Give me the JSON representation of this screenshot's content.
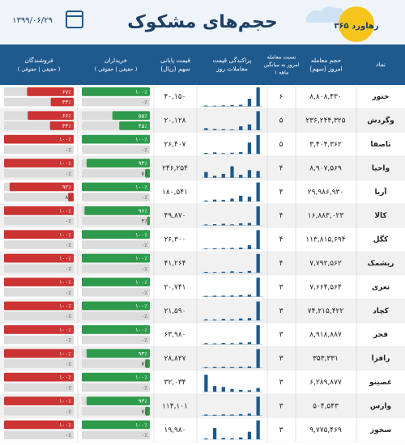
{
  "header": {
    "title": "حجم‌های مشکوک",
    "date": "۱۳۹۹/۰۶/۲۹",
    "logo": "رهاورد ۳۶۵"
  },
  "table": {
    "columns": {
      "symbol": [
        "نماد"
      ],
      "volume": [
        "حجم معامله",
        "امروز (سهم)"
      ],
      "ratio": [
        "نسبت معامله",
        "امروز به میانگین",
        "۱ ماهه"
      ],
      "dispersion": [
        "پراکندگی قیمت",
        "معاملات روز"
      ],
      "price": [
        "قیمت پایانی",
        "سهم (ریال)"
      ],
      "buyers": [
        "خریداران",
        "( حقیقی | حقوقی )"
      ],
      "sellers": [
        "فروشندگان",
        "( حقیقی | حقوقی )"
      ]
    },
    "rows": [
      {
        "symbol": "ختور",
        "volume": "۸,۸۰۸,۴۳۰",
        "ratio": "۶",
        "price": "۴۰,۱۵۰",
        "dispersion": [
          4,
          3,
          5,
          6,
          8,
          40,
          100
        ],
        "buyers": [
          {
            "value": 100,
            "label": "۱۰۰٪"
          },
          {
            "value": 0,
            "label": "۰٪"
          }
        ],
        "sellers": [
          {
            "value": 67,
            "label": "۶۷٪"
          },
          {
            "value": 33,
            "label": "۳۳٪"
          }
        ]
      },
      {
        "symbol": "وگردش",
        "volume": "۲۳۶,۲۴۴,۳۲۵",
        "ratio": "۵",
        "price": "۲۰,۱۲۸",
        "dispersion": [
          10,
          6,
          5,
          4,
          20,
          30,
          100
        ],
        "buyers": [
          {
            "value": 55,
            "label": "۵۵٪"
          },
          {
            "value": 45,
            "label": "۴۵٪"
          }
        ],
        "sellers": [
          {
            "value": 66,
            "label": "۶۶٪"
          },
          {
            "value": 34,
            "label": "۳۴٪"
          }
        ]
      },
      {
        "symbol": "ثاصفا",
        "volume": "۳,۴۰۴,۳۶۲",
        "ratio": "۵",
        "price": "۲۶,۴۰۷",
        "dispersion": [
          5,
          8,
          4,
          6,
          10,
          60,
          100
        ],
        "buyers": [
          {
            "value": 100,
            "label": "۱۰۰٪"
          },
          {
            "value": 0,
            "label": "۰٪"
          }
        ],
        "sellers": [
          {
            "value": 100,
            "label": "۱۰۰٪"
          },
          {
            "value": 0,
            "label": "۰٪"
          }
        ]
      },
      {
        "symbol": "واحیا",
        "volume": "۸,۹۰۷,۵۶۹",
        "ratio": "۴",
        "price": "۲۴۶,۲۵۴",
        "dispersion": [
          30,
          10,
          20,
          60,
          15,
          40,
          35
        ],
        "buyers": [
          {
            "value": 93,
            "label": "۹۳٪"
          },
          {
            "value": 7,
            "label": "۷٪"
          }
        ],
        "sellers": [
          {
            "value": 100,
            "label": "۱۰۰٪"
          },
          {
            "value": 0,
            "label": "۰٪"
          }
        ]
      },
      {
        "symbol": "آریا",
        "volume": "۲۹,۹۸۶,۹۳۰",
        "ratio": "۴",
        "price": "۱۸۰,۵۴۱",
        "dispersion": [
          5,
          10,
          8,
          15,
          30,
          25,
          100
        ],
        "buyers": [
          {
            "value": 100,
            "label": "۱۰۰٪"
          },
          {
            "value": 0,
            "label": "۰٪"
          }
        ],
        "sellers": [
          {
            "value": 92,
            "label": "۹۲٪"
          },
          {
            "value": 8,
            "label": "۸٪"
          }
        ]
      },
      {
        "symbol": "کالا",
        "volume": "۱۶,۸۸۳,۰۲۳",
        "ratio": "۴",
        "price": "۴۹,۸۷۰",
        "dispersion": [
          4,
          6,
          8,
          5,
          10,
          12,
          100
        ],
        "buyers": [
          {
            "value": 96,
            "label": "۹۶٪"
          },
          {
            "value": 4,
            "label": "۴٪"
          }
        ],
        "sellers": [
          {
            "value": 100,
            "label": "۱۰۰٪"
          },
          {
            "value": 0,
            "label": "۰٪"
          }
        ]
      },
      {
        "symbol": "کگل",
        "volume": "۱۱۳,۸۱۵,۶۹۴",
        "ratio": "۴",
        "price": "۲۶,۳۰۰",
        "dispersion": [
          3,
          4,
          5,
          6,
          8,
          20,
          100
        ],
        "buyers": [
          {
            "value": 100,
            "label": "۱۰۰٪"
          },
          {
            "value": 0,
            "label": "۰٪"
          }
        ],
        "sellers": [
          {
            "value": 100,
            "label": "۱۰۰٪"
          },
          {
            "value": 0,
            "label": "۰٪"
          }
        ]
      },
      {
        "symbol": "ریشمک",
        "volume": "۷,۷۹۲,۵۶۲",
        "ratio": "۴",
        "price": "۴۱,۲۶۴",
        "dispersion": [
          5,
          4,
          6,
          8,
          5,
          10,
          100
        ],
        "buyers": [
          {
            "value": 100,
            "label": "۱۰۰٪"
          },
          {
            "value": 0,
            "label": "۰٪"
          }
        ],
        "sellers": [
          {
            "value": 100,
            "label": "۱۰۰٪"
          },
          {
            "value": 0,
            "label": "۰٪"
          }
        ]
      },
      {
        "symbol": "ثغری",
        "volume": "۷,۶۶۴,۵۶۴",
        "ratio": "۳",
        "price": "۲۰,۷۴۱",
        "dispersion": [
          4,
          5,
          5,
          6,
          8,
          10,
          100
        ],
        "buyers": [
          {
            "value": 100,
            "label": "۱۰۰٪"
          },
          {
            "value": 0,
            "label": "۰٪"
          }
        ],
        "sellers": [
          {
            "value": 100,
            "label": "۱۰۰٪"
          },
          {
            "value": 0,
            "label": "۰٪"
          }
        ]
      },
      {
        "symbol": "کچاد",
        "volume": "۷۴,۲۱۵,۴۲۲",
        "ratio": "۳",
        "price": "۲۱,۵۹۰",
        "dispersion": [
          6,
          5,
          8,
          6,
          10,
          12,
          100
        ],
        "buyers": [
          {
            "value": 100,
            "label": "۱۰۰٪"
          },
          {
            "value": 0,
            "label": "۰٪"
          }
        ],
        "sellers": [
          {
            "value": 100,
            "label": "۱۰۰٪"
          },
          {
            "value": 0,
            "label": "۰٪"
          }
        ]
      },
      {
        "symbol": "فجر",
        "volume": "۸,۹۱۸,۸۸۷",
        "ratio": "۳",
        "price": "۶۳,۹۸۰",
        "dispersion": [
          5,
          4,
          6,
          5,
          8,
          10,
          100
        ],
        "buyers": [
          {
            "value": 100,
            "label": "۱۰۰٪"
          },
          {
            "value": 0,
            "label": "۰٪"
          }
        ],
        "sellers": [
          {
            "value": 100,
            "label": "۱۰۰٪"
          },
          {
            "value": 0,
            "label": "۰٪"
          }
        ]
      },
      {
        "symbol": "رافزا",
        "volume": "۳۵۳,۳۳۱",
        "ratio": "۳",
        "price": "۲۸,۸۲۷",
        "dispersion": [
          4,
          5,
          6,
          5,
          6,
          8,
          100
        ],
        "buyers": [
          {
            "value": 93,
            "label": "۹۳٪"
          },
          {
            "value": 7,
            "label": "۷٪"
          }
        ],
        "sellers": [
          {
            "value": 100,
            "label": "۱۰۰٪"
          },
          {
            "value": 0,
            "label": "۰٪"
          }
        ]
      },
      {
        "symbol": "غصینو",
        "volume": "۶,۲۸۹,۸۷۷",
        "ratio": "۳",
        "price": "۳۲,۰۳۴",
        "dispersion": [
          90,
          30,
          25,
          15,
          10,
          8,
          20
        ],
        "buyers": [
          {
            "value": 100,
            "label": "۱۰۰٪"
          },
          {
            "value": 0,
            "label": "۰٪"
          }
        ],
        "sellers": [
          {
            "value": 100,
            "label": "۱۰۰٪"
          },
          {
            "value": 0,
            "label": "۰٪"
          }
        ]
      },
      {
        "symbol": "وارس",
        "volume": "۵۰۴,۵۴۳",
        "ratio": "۳",
        "price": "۱۱۴,۱۰۱",
        "dispersion": [
          5,
          4,
          6,
          5,
          8,
          10,
          100
        ],
        "buyers": [
          {
            "value": 93,
            "label": "۹۳٪"
          },
          {
            "value": 7,
            "label": "۷٪"
          }
        ],
        "sellers": [
          {
            "value": 100,
            "label": "۱۰۰٪"
          },
          {
            "value": 0,
            "label": "۰٪"
          }
        ]
      },
      {
        "symbol": "سخوز",
        "volume": "۹,۷۷۵,۴۶۹",
        "ratio": "۳",
        "price": "۱۹,۹۸۰",
        "dispersion": [
          5,
          60,
          8,
          6,
          10,
          40,
          100
        ],
        "buyers": [
          {
            "value": 100,
            "label": "۱۰۰٪"
          },
          {
            "value": 0,
            "label": "۰٪"
          }
        ],
        "sellers": [
          {
            "value": 100,
            "label": "۱۰۰٪"
          },
          {
            "value": 0,
            "label": "۰٪"
          }
        ]
      }
    ]
  }
}
